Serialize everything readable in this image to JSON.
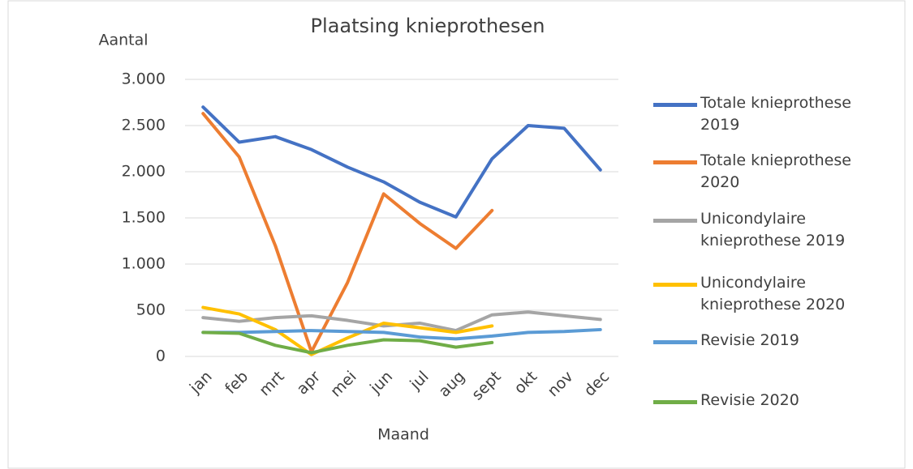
{
  "chart_data": {
    "type": "line",
    "title": "Plaatsing knieprothesen",
    "y_label": "Aantal",
    "x_label": "Maand",
    "categories": [
      "jan",
      "feb",
      "mrt",
      "apr",
      "mei",
      "jun",
      "jul",
      "aug",
      "sept",
      "okt",
      "nov",
      "dec"
    ],
    "series": [
      {
        "name": "Totale knieprothese 2019",
        "color": "#4472c4",
        "values": [
          2700,
          2320,
          2380,
          2240,
          2050,
          1890,
          1670,
          1510,
          2140,
          2500,
          2470,
          2020
        ]
      },
      {
        "name": "Totale knieprothese 2020",
        "color": "#ed7d31",
        "values": [
          2630,
          2160,
          1200,
          50,
          800,
          1760,
          1440,
          1170,
          1580,
          null,
          null,
          null
        ]
      },
      {
        "name": "Unicondylaire knieprothese 2019",
        "color": "#a5a5a5",
        "values": [
          420,
          380,
          420,
          440,
          390,
          330,
          360,
          280,
          450,
          480,
          440,
          400
        ]
      },
      {
        "name": "Unicondylaire knieprothese 2020",
        "color": "#ffc000",
        "values": [
          530,
          460,
          290,
          20,
          200,
          360,
          310,
          260,
          330,
          null,
          null,
          null
        ]
      },
      {
        "name": "Revisie 2019",
        "color": "#5b9bd5",
        "values": [
          260,
          260,
          270,
          280,
          270,
          260,
          210,
          190,
          220,
          260,
          270,
          290
        ]
      },
      {
        "name": "Revisie 2020",
        "color": "#70ad47",
        "values": [
          260,
          250,
          120,
          40,
          120,
          180,
          170,
          100,
          150,
          null,
          null,
          null
        ]
      }
    ],
    "ylim": [
      0,
      3000
    ],
    "yticks": [
      0,
      500,
      {
        "value": 1000,
        "label": "1.000"
      },
      {
        "value": 1500,
        "label": "1.500"
      },
      {
        "value": 2000,
        "label": "2.000"
      },
      {
        "value": 2500,
        "label": "2.500"
      },
      {
        "value": 3000,
        "label": "3.000"
      }
    ],
    "grid": true
  }
}
